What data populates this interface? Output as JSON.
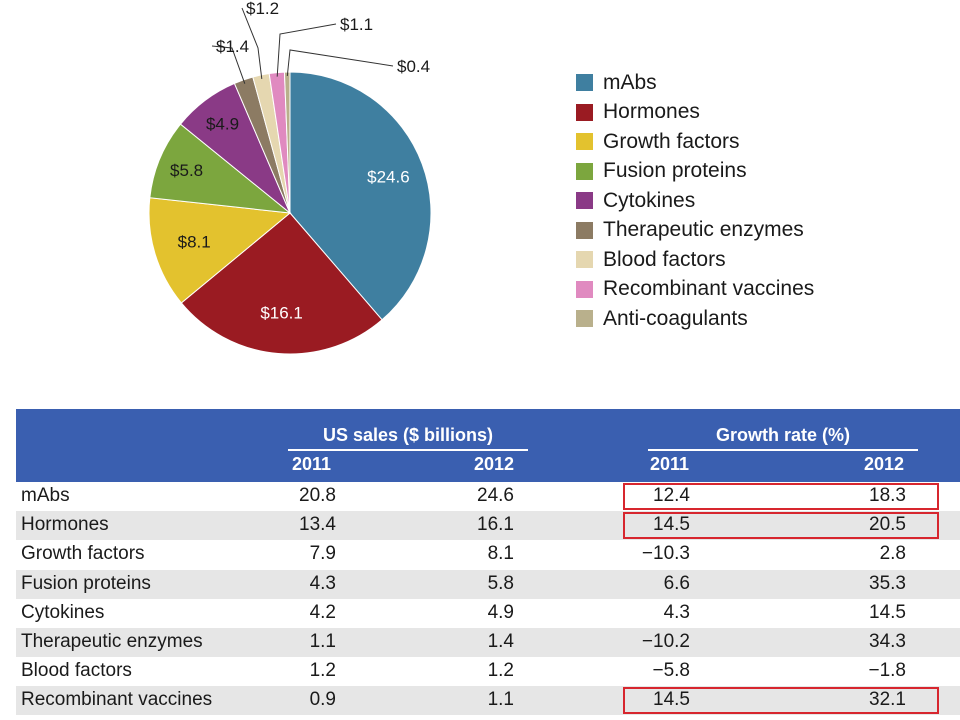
{
  "chart_data": [
    {
      "type": "pie",
      "unit": "$",
      "slices": [
        {
          "label": "mAbs",
          "value": 24.6,
          "display": "$24.6",
          "color": "#3f7fa0"
        },
        {
          "label": "Hormones",
          "value": 16.1,
          "display": "$16.1",
          "color": "#9a1b22"
        },
        {
          "label": "Growth factors",
          "value": 8.1,
          "display": "$8.1",
          "color": "#e3c22e"
        },
        {
          "label": "Fusion proteins",
          "value": 5.8,
          "display": "$5.8",
          "color": "#7ca63e"
        },
        {
          "label": "Cytokines",
          "value": 4.9,
          "display": "$4.9",
          "color": "#8a3a86"
        },
        {
          "label": "Therapeutic enzymes",
          "value": 1.4,
          "display": "$1.4",
          "color": "#8c7b63"
        },
        {
          "label": "Blood factors",
          "value": 1.2,
          "display": "$1.2",
          "color": "#e5d7b0"
        },
        {
          "label": "Recombinant vaccines",
          "value": 1.1,
          "display": "$1.1",
          "color": "#e08ac0"
        },
        {
          "label": "Anti-coagulants",
          "value": 0.4,
          "display": "$0.4",
          "color": "#b9b08c"
        }
      ],
      "legend_position": "right"
    },
    {
      "type": "table",
      "group_headers": [
        "US sales ($ billions)",
        "Growth rate (%)"
      ],
      "years": [
        "2011",
        "2012",
        "2011",
        "2012"
      ],
      "rows": [
        {
          "name": "mAbs",
          "values": [
            "20.8",
            "24.6",
            "12.4",
            "18.3"
          ],
          "highlight": true
        },
        {
          "name": "Hormones",
          "values": [
            "13.4",
            "16.1",
            "14.5",
            "20.5"
          ],
          "highlight": true
        },
        {
          "name": "Growth factors",
          "values": [
            "7.9",
            "8.1",
            "−10.3",
            "2.8"
          ],
          "highlight": false
        },
        {
          "name": "Fusion proteins",
          "values": [
            "4.3",
            "5.8",
            "6.6",
            "35.3"
          ],
          "highlight": false
        },
        {
          "name": "Cytokines",
          "values": [
            "4.2",
            "4.9",
            "4.3",
            "14.5"
          ],
          "highlight": false
        },
        {
          "name": "Therapeutic enzymes",
          "values": [
            "1.1",
            "1.4",
            "−10.2",
            "34.3"
          ],
          "highlight": false
        },
        {
          "name": "Blood factors",
          "values": [
            "1.2",
            "1.2",
            "−5.8",
            "−1.8"
          ],
          "highlight": false
        },
        {
          "name": "Recombinant vaccines",
          "values": [
            "0.9",
            "1.1",
            "14.5",
            "32.1"
          ],
          "highlight": true
        }
      ],
      "highlight_color": "#d7262e",
      "header_color": "#3a5fb0"
    }
  ]
}
